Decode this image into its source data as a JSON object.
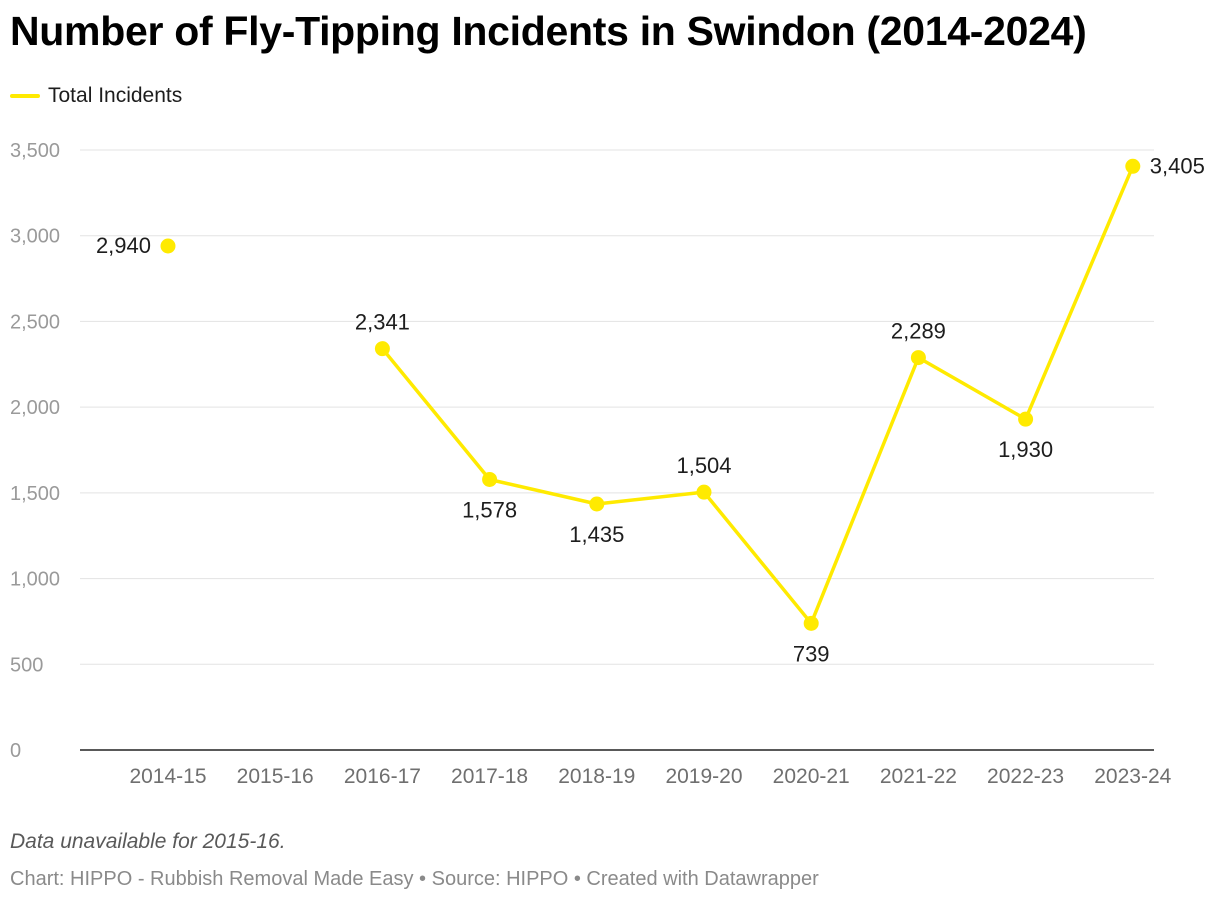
{
  "title": "Number of Fly-Tipping Incidents in Swindon (2014-2024)",
  "legend": {
    "label": "Total Incidents",
    "color": "#ffea00"
  },
  "note": "Data unavailable for 2015-16.",
  "credit": "Chart: HIPPO - Rubbish Removal Made Easy • Source: HIPPO • Created with Datawrapper",
  "chart_data": {
    "type": "line",
    "title": "Number of Fly-Tipping Incidents in Swindon (2014-2024)",
    "xlabel": "",
    "ylabel": "",
    "ylim": [
      0,
      3500
    ],
    "yticks": [
      0,
      500,
      1000,
      1500,
      2000,
      2500,
      3000,
      3500
    ],
    "ytick_labels": [
      "0",
      "500",
      "1,000",
      "1,500",
      "2,000",
      "2,500",
      "3,000",
      "3,500"
    ],
    "grid": true,
    "categories": [
      "2014-15",
      "2015-16",
      "2016-17",
      "2017-18",
      "2018-19",
      "2019-20",
      "2020-21",
      "2021-22",
      "2022-23",
      "2023-24"
    ],
    "series": [
      {
        "name": "Total Incidents",
        "color": "#ffea00",
        "values": [
          2940,
          null,
          2341,
          1578,
          1435,
          1504,
          739,
          2289,
          1930,
          3405
        ],
        "labels": [
          "2,940",
          "",
          "2,341",
          "1,578",
          "1,435",
          "1,504",
          "739",
          "2,289",
          "1,930",
          "3,405"
        ]
      }
    ]
  }
}
